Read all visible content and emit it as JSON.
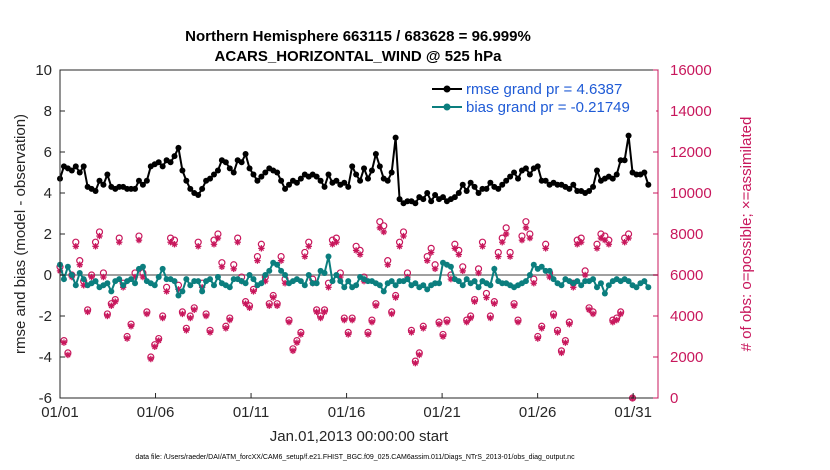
{
  "chart_data": {
    "type": "line",
    "title": "Northern Hemisphere 663115 / 683628 = 96.999%",
    "subtitle": "ACARS_HORIZONTAL_WIND @ 525 hPa",
    "xlabel": "Jan.01,2013 00:00:00 start",
    "ylabel": "rmse and bias (model - observation)",
    "y2label": "# of obs: o=possible; ×=assimilated",
    "xlim": [
      0,
      31.3
    ],
    "ylim": [
      -6,
      10
    ],
    "y2lim": [
      0,
      16000
    ],
    "x_ticks": [
      0,
      5,
      10,
      15,
      20,
      25,
      30
    ],
    "x_tick_labels": [
      "01/01",
      "01/06",
      "01/11",
      "01/16",
      "01/21",
      "01/26",
      "01/31"
    ],
    "y_tick_labels": [
      "-6",
      "-4",
      "-2",
      "0",
      "2",
      "4",
      "6",
      "8",
      "10"
    ],
    "y2_tick_labels": [
      "0",
      "2000",
      "4000",
      "6000",
      "8000",
      "10000",
      "12000",
      "14000",
      "16000"
    ],
    "legend": {
      "placement": "top-right"
    },
    "footer": "data file: /Users/raeder/DAI/ATM_forcXX/CAM6_setup/f.e21.FHIST_BGC.f09_025.CAM6assim.011/Diags_NTrS_2013-01/obs_diag_output.nc",
    "colors": {
      "rmse": "#000000",
      "bias": "#0b7e7e",
      "obs": "#c8175c",
      "zero_line": "#a0a0a0"
    },
    "series": [
      {
        "name": "rmse grand pr = 4.6387",
        "marker": "filled-circle",
        "values": [
          4.7,
          5.3,
          5.2,
          5.1,
          5.3,
          5.0,
          5.3,
          4.3,
          4.2,
          4.1,
          4.6,
          4.4,
          4.9,
          4.3,
          4.2,
          4.3,
          4.3,
          4.2,
          4.2,
          4.2,
          4.6,
          4.4,
          4.6,
          5.3,
          5.4,
          5.5,
          5.3,
          5.6,
          5.5,
          5.8,
          6.2,
          5.1,
          4.6,
          4.2,
          4.0,
          3.9,
          4.2,
          4.6,
          4.7,
          4.9,
          5.1,
          5.6,
          5.5,
          5.2,
          5.0,
          5.6,
          5.5,
          5.9,
          5.2,
          4.9,
          4.6,
          4.8,
          5.0,
          5.2,
          5.1,
          5.0,
          4.6,
          4.2,
          4.4,
          4.6,
          4.5,
          4.7,
          4.9,
          4.8,
          4.9,
          4.8,
          4.6,
          4.3,
          4.9,
          4.5,
          4.6,
          4.4,
          4.5,
          4.3,
          5.3,
          4.9,
          4.6,
          5.2,
          4.7,
          5.1,
          5.9,
          5.3,
          4.7,
          4.6,
          5.0,
          6.7,
          3.7,
          3.5,
          3.6,
          3.6,
          3.5,
          3.8,
          3.7,
          4.0,
          3.6,
          3.9,
          3.7,
          3.8,
          3.6,
          3.7,
          3.8,
          4.0,
          4.4,
          4.1,
          4.5,
          4.3,
          4.0,
          4.2,
          4.2,
          4.5,
          4.3,
          4.2,
          4.4,
          4.6,
          4.8,
          5.0,
          4.7,
          5.1,
          5.2,
          4.9,
          5.2,
          5.3,
          4.6,
          4.6,
          4.4,
          4.5,
          4.4,
          4.4,
          4.3,
          4.2,
          4.4,
          4.1,
          4.1,
          4.0,
          4.1,
          4.3,
          5.1,
          4.6,
          4.7,
          4.8,
          4.7,
          4.9,
          5.6,
          5.6,
          6.8,
          5.0,
          4.9,
          4.9,
          5.0,
          4.4
        ]
      },
      {
        "name": "bias grand pr = -0.21749",
        "marker": "filled-circle",
        "values": [
          0.5,
          -0.2,
          0.4,
          0.0,
          -0.5,
          0.1,
          -0.2,
          -0.5,
          -0.4,
          -0.3,
          -0.6,
          -0.5,
          -0.4,
          -0.8,
          -0.3,
          -0.2,
          -0.5,
          -0.3,
          -0.2,
          -0.4,
          0.3,
          0.4,
          -0.3,
          -0.4,
          -0.5,
          -0.1,
          0.3,
          -0.2,
          -0.2,
          -0.3,
          -1.0,
          -0.8,
          -0.2,
          -0.5,
          -0.3,
          -0.3,
          -0.8,
          -0.3,
          -0.2,
          -0.5,
          -0.1,
          -0.4,
          -0.5,
          -0.6,
          -0.2,
          -0.2,
          -0.3,
          -0.4,
          0.0,
          -0.2,
          -0.5,
          -0.4,
          0.0,
          0.2,
          0.6,
          0.5,
          0.2,
          0.0,
          -0.4,
          -0.3,
          -0.2,
          -0.3,
          -0.5,
          0.0,
          -0.4,
          -0.4,
          0.2,
          0.1,
          0.9,
          -0.3,
          0.0,
          -0.3,
          -0.6,
          -0.3,
          -0.6,
          -0.5,
          -0.1,
          -0.2,
          -0.3,
          -0.3,
          -0.4,
          -0.5,
          -0.8,
          -0.4,
          -0.3,
          -0.5,
          -0.3,
          -0.3,
          -0.2,
          -0.5,
          -0.4,
          -0.6,
          -0.5,
          -0.7,
          -0.5,
          -0.4,
          -0.4,
          0.6,
          0.5,
          0.4,
          -0.2,
          -0.3,
          -0.5,
          -0.2,
          -0.4,
          -0.3,
          -0.6,
          -0.3,
          -0.4,
          -0.5,
          0.3,
          -0.3,
          -0.4,
          -0.4,
          -0.5,
          -0.6,
          -0.5,
          -0.4,
          -0.3,
          0.0,
          0.5,
          0.3,
          0.4,
          0.2,
          0.2,
          -0.2,
          -0.4,
          -0.5,
          -0.2,
          -0.3,
          -0.4,
          -0.3,
          -0.5,
          -0.3,
          -0.3,
          -0.2,
          -0.6,
          -0.4,
          -0.9,
          -0.5,
          -0.3,
          -0.2,
          -0.3,
          -0.2,
          -0.3,
          -0.5,
          -0.6,
          -0.4,
          -0.3,
          -0.6
        ]
      },
      {
        "name": "obs possible",
        "marker": "open-circle",
        "axis": "right",
        "values": [
          6400,
          2800,
          2200,
          6000,
          7600,
          6700,
          5700,
          4300,
          6000,
          7600,
          8100,
          6100,
          4100,
          4600,
          4800,
          7800,
          5600,
          3000,
          3600,
          6100,
          7900,
          6100,
          4200,
          2000,
          2600,
          2900,
          4000,
          5400,
          7800,
          7700,
          5500,
          4200,
          3400,
          4000,
          4400,
          7600,
          5600,
          4100,
          3300,
          7700,
          8000,
          6600,
          3500,
          3900,
          6500,
          7800,
          5900,
          4700,
          4500,
          5300,
          6900,
          7500,
          5900,
          4600,
          5000,
          4600,
          6900,
          5800,
          3800,
          2400,
          2800,
          3200,
          7100,
          7600,
          5800,
          4300,
          4000,
          4300,
          5600,
          7700,
          7800,
          6100,
          3900,
          3200,
          3900,
          7400,
          7200,
          5900,
          3200,
          3800,
          4600,
          8600,
          8400,
          6700,
          4200,
          5000,
          7600,
          8100,
          6100,
          3300,
          1800,
          2200,
          3500,
          6900,
          7300,
          6500,
          3700,
          3100,
          3800,
          6000,
          7500,
          7200,
          6400,
          3800,
          4000,
          4800,
          6300,
          7600,
          5100,
          4000,
          4700,
          7100,
          7800,
          8300,
          7100,
          4600,
          3800,
          7900,
          8600,
          8000,
          5800,
          3000,
          3500,
          7500,
          6100,
          4100,
          3300,
          2300,
          2800,
          3700,
          5600,
          7700,
          7800,
          6200,
          4400,
          4200,
          7500,
          8000,
          7900,
          7700,
          3800,
          3900,
          4200,
          7800,
          8000,
          0
        ]
      },
      {
        "name": "obs assimilated",
        "marker": "asterisk",
        "axis": "right",
        "values": [
          6200,
          2700,
          2100,
          5900,
          7400,
          6500,
          5500,
          4200,
          5900,
          7400,
          7900,
          5900,
          4000,
          4500,
          4700,
          7600,
          5400,
          2900,
          3500,
          5900,
          7700,
          5900,
          4100,
          1900,
          2500,
          2800,
          3900,
          5200,
          7600,
          7500,
          5300,
          4100,
          3300,
          3900,
          4300,
          7400,
          5400,
          4000,
          3200,
          7500,
          7800,
          6400,
          3400,
          3800,
          6300,
          7600,
          5700,
          4600,
          4400,
          5200,
          6700,
          7300,
          5700,
          4500,
          4900,
          4500,
          6700,
          5600,
          3700,
          2300,
          2700,
          3100,
          6900,
          7400,
          5600,
          4200,
          3900,
          4200,
          5400,
          7500,
          7600,
          5900,
          3800,
          3100,
          3800,
          7200,
          7000,
          5700,
          3100,
          3700,
          4500,
          8300,
          8100,
          6500,
          4100,
          4900,
          7400,
          7900,
          5900,
          3200,
          1700,
          2100,
          3400,
          6700,
          7100,
          6300,
          3600,
          3000,
          3700,
          5800,
          7300,
          7000,
          6200,
          3700,
          3900,
          4700,
          6100,
          7400,
          4900,
          3900,
          4600,
          6900,
          7600,
          8000,
          6900,
          4500,
          3700,
          7700,
          8300,
          7800,
          5600,
          2900,
          3400,
          7300,
          5900,
          4000,
          3200,
          2200,
          2700,
          3600,
          5400,
          7500,
          7600,
          6000,
          4300,
          4100,
          7300,
          7800,
          7700,
          7500,
          3700,
          3800,
          4100,
          7600,
          7800,
          0
        ]
      }
    ]
  }
}
